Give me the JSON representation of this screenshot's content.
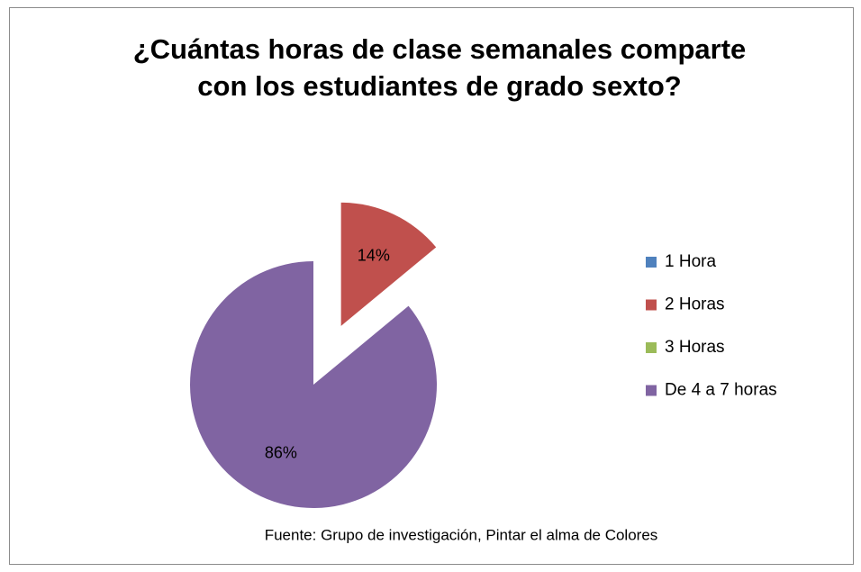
{
  "chart_data": {
    "type": "pie",
    "title": "¿Cuántas horas de clase semanales comparte con los estudiantes de grado sexto?",
    "categories": [
      "1 Hora",
      "2 Horas",
      "3 Horas",
      "De 4 a 7 horas"
    ],
    "values": [
      0,
      14,
      0,
      86
    ],
    "value_labels": [
      null,
      "14%",
      null,
      "86%"
    ],
    "colors": [
      "#4f81bd",
      "#c0504d",
      "#9bbb59",
      "#8064a2"
    ],
    "legend": "right",
    "source": "Fuente: Grupo de investigación, Pintar el alma de Colores"
  }
}
